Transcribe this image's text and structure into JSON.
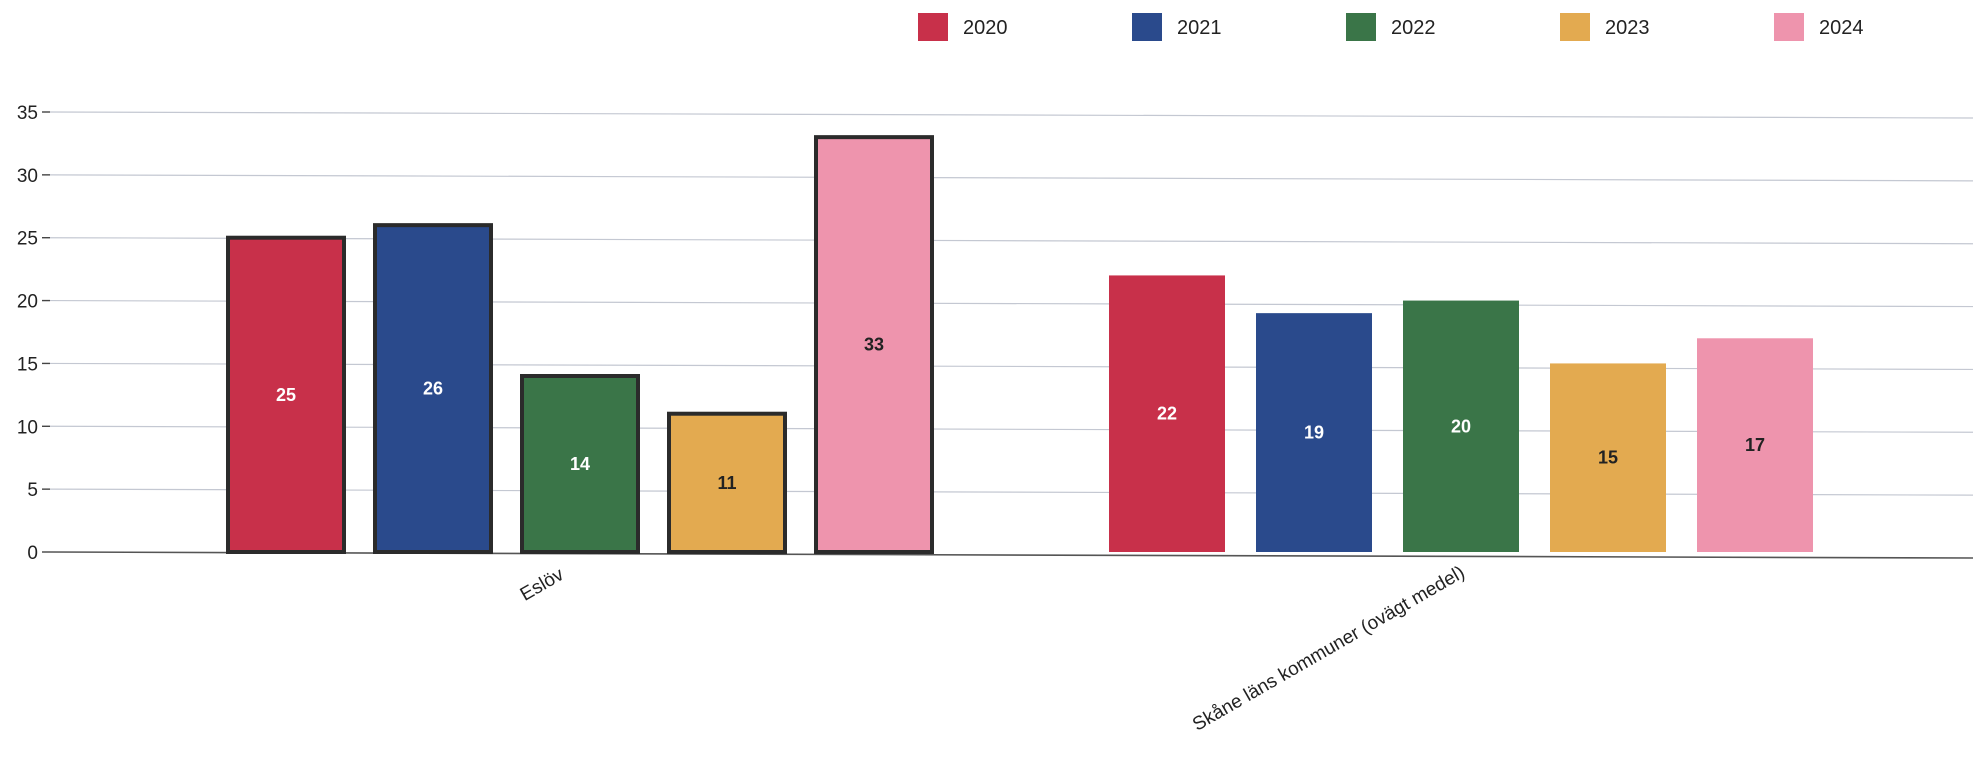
{
  "chart_data": {
    "type": "bar",
    "categories": [
      "Eslöv",
      "Skåne läns kommuner (ovägt medel)"
    ],
    "series": [
      {
        "name": "2020",
        "color": "#c8304a",
        "values": [
          25,
          22
        ],
        "labels": [
          "25",
          "22"
        ]
      },
      {
        "name": "2021",
        "color": "#2a4a8c",
        "values": [
          26,
          19
        ],
        "labels": [
          "26",
          "19"
        ]
      },
      {
        "name": "2022",
        "color": "#3a7548",
        "values": [
          14,
          20
        ],
        "labels": [
          "14",
          "20"
        ]
      },
      {
        "name": "2023",
        "color": "#e3aa50",
        "values": [
          11,
          15
        ],
        "labels": [
          "11",
          "15"
        ]
      },
      {
        "name": "2024",
        "color": "#ee94ad",
        "values": [
          33,
          17
        ],
        "labels": [
          "33",
          "17"
        ]
      }
    ],
    "highlighted_category": "Eslöv",
    "title": "",
    "xlabel": "",
    "ylabel": "",
    "ylim": [
      0,
      35
    ],
    "yticks": [
      0,
      5,
      10,
      15,
      20,
      25,
      30,
      35
    ],
    "ytick_labels": [
      "0",
      "5",
      "10",
      "15",
      "20",
      "25",
      "30",
      "35"
    ],
    "grid": true,
    "legend_position": "top"
  }
}
